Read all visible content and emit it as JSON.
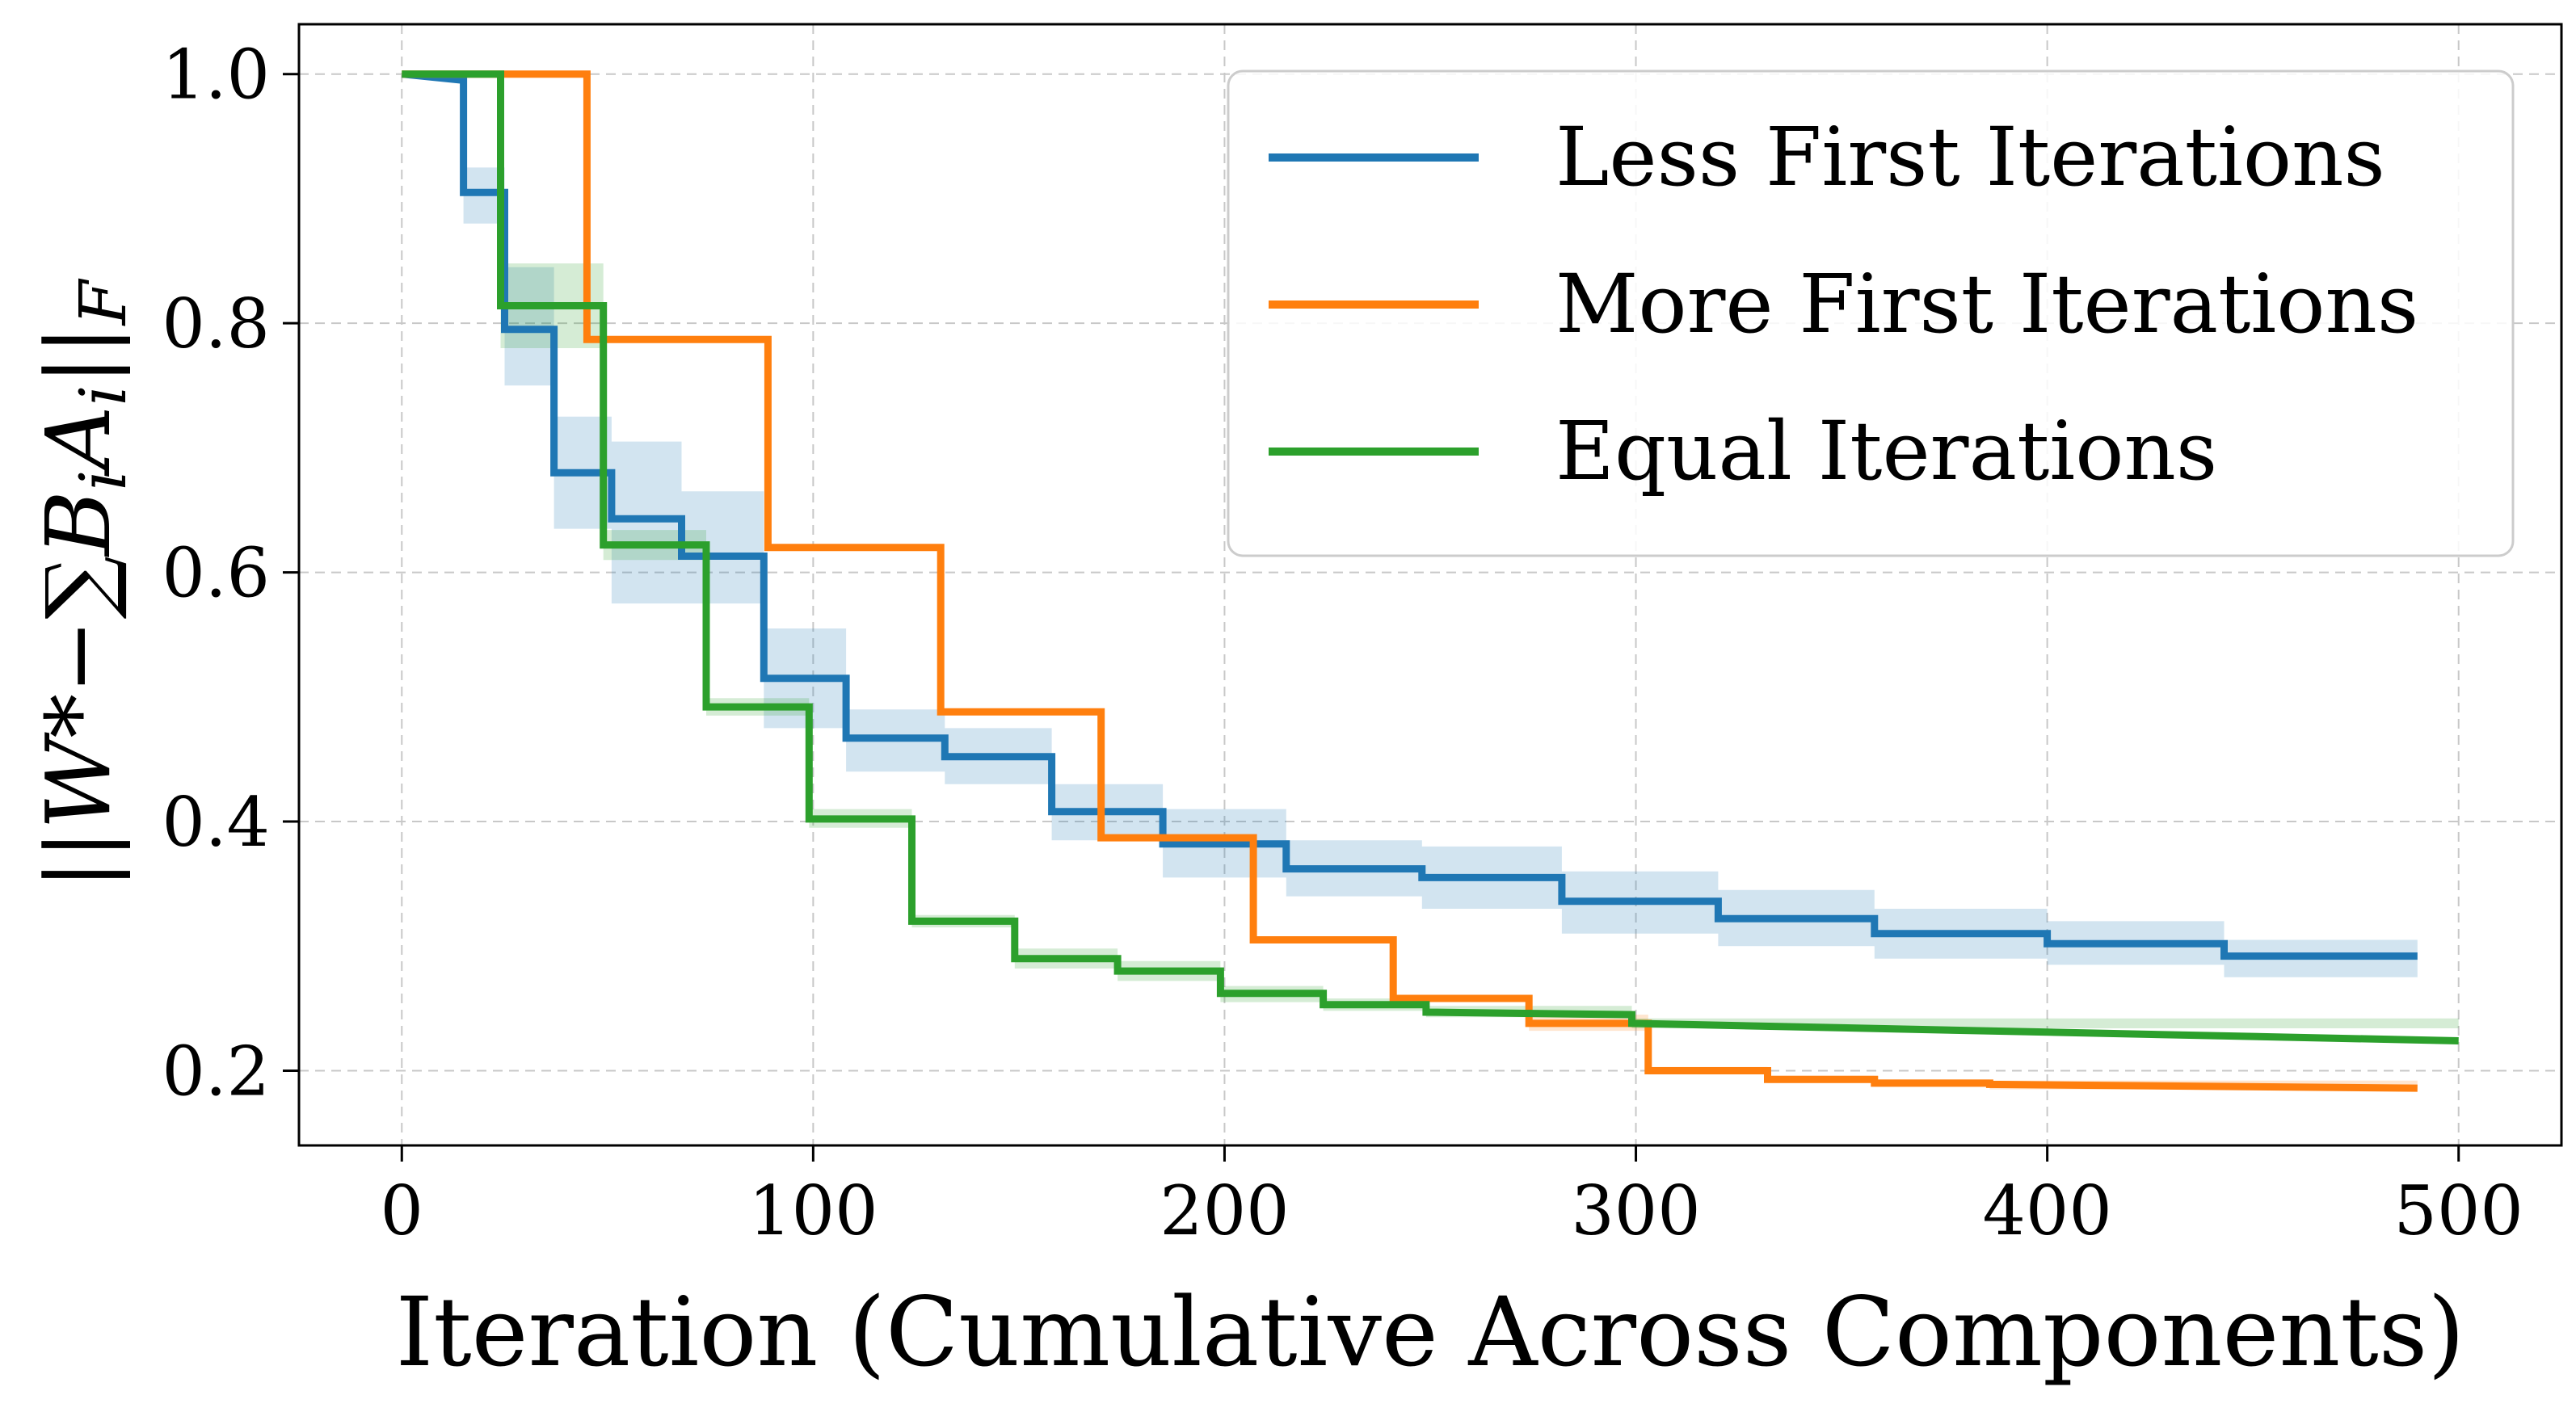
{
  "chart_data": {
    "type": "line",
    "title": "",
    "xlabel": "Iteration (Cumulative Across Components)",
    "ylabel": "||W* − ∑ B_i A_i||_F",
    "xlim": [
      -25,
      525
    ],
    "ylim": [
      0.14,
      1.04
    ],
    "xticks": [
      0,
      100,
      200,
      300,
      400,
      500
    ],
    "yticks": [
      0.2,
      0.4,
      0.6,
      0.8,
      1.0
    ],
    "xtick_labels": [
      "0",
      "100",
      "200",
      "300",
      "400",
      "500"
    ],
    "ytick_labels": [
      "0.2",
      "0.4",
      "0.6",
      "0.8",
      "1.0"
    ],
    "grid": true,
    "legend_position": "top-right",
    "series": [
      {
        "name": "Less First Iterations",
        "color": "#1f77b4",
        "band_opacity": 0.2,
        "steps": [
          [
            0,
            1.0
          ],
          [
            15,
            0.995
          ],
          [
            15,
            0.905
          ],
          [
            25,
            0.905
          ],
          [
            25,
            0.795
          ],
          [
            37,
            0.795
          ],
          [
            37,
            0.68
          ],
          [
            51,
            0.68
          ],
          [
            51,
            0.643
          ],
          [
            68,
            0.643
          ],
          [
            68,
            0.613
          ],
          [
            88,
            0.613
          ],
          [
            88,
            0.515
          ],
          [
            108,
            0.515
          ],
          [
            108,
            0.467
          ],
          [
            132,
            0.467
          ],
          [
            132,
            0.452
          ],
          [
            158,
            0.452
          ],
          [
            158,
            0.408
          ],
          [
            185,
            0.408
          ],
          [
            185,
            0.382
          ],
          [
            215,
            0.382
          ],
          [
            215,
            0.362
          ],
          [
            248,
            0.362
          ],
          [
            248,
            0.355
          ],
          [
            282,
            0.355
          ],
          [
            282,
            0.336
          ],
          [
            320,
            0.336
          ],
          [
            320,
            0.322
          ],
          [
            358,
            0.322
          ],
          [
            358,
            0.31
          ],
          [
            400,
            0.31
          ],
          [
            400,
            0.302
          ],
          [
            443,
            0.302
          ],
          [
            443,
            0.292
          ],
          [
            490,
            0.292
          ]
        ],
        "band": [
          [
            0,
            1.0,
            1.0
          ],
          [
            15,
            0.88,
            0.925
          ],
          [
            25,
            0.75,
            0.845
          ],
          [
            37,
            0.635,
            0.725
          ],
          [
            51,
            0.575,
            0.705
          ],
          [
            68,
            0.575,
            0.665
          ],
          [
            88,
            0.475,
            0.555
          ],
          [
            108,
            0.44,
            0.49
          ],
          [
            132,
            0.43,
            0.475
          ],
          [
            158,
            0.385,
            0.43
          ],
          [
            185,
            0.355,
            0.41
          ],
          [
            215,
            0.34,
            0.385
          ],
          [
            248,
            0.33,
            0.38
          ],
          [
            282,
            0.31,
            0.36
          ],
          [
            320,
            0.3,
            0.345
          ],
          [
            358,
            0.29,
            0.33
          ],
          [
            400,
            0.285,
            0.32
          ],
          [
            443,
            0.275,
            0.305
          ],
          [
            490,
            0.275,
            0.305
          ]
        ]
      },
      {
        "name": "More First Iterations",
        "color": "#ff7f0e",
        "band_opacity": 0.2,
        "steps": [
          [
            0,
            1.0
          ],
          [
            45,
            1.0
          ],
          [
            45,
            0.787
          ],
          [
            89,
            0.787
          ],
          [
            89,
            0.62
          ],
          [
            131,
            0.62
          ],
          [
            131,
            0.488
          ],
          [
            170,
            0.488
          ],
          [
            170,
            0.387
          ],
          [
            207,
            0.387
          ],
          [
            207,
            0.305
          ],
          [
            241,
            0.305
          ],
          [
            241,
            0.258
          ],
          [
            274,
            0.258
          ],
          [
            274,
            0.238
          ],
          [
            303,
            0.238
          ],
          [
            303,
            0.2
          ],
          [
            332,
            0.2
          ],
          [
            332,
            0.193
          ],
          [
            358,
            0.193
          ],
          [
            358,
            0.19
          ],
          [
            386,
            0.19
          ],
          [
            386,
            0.189
          ],
          [
            490,
            0.186
          ]
        ],
        "band": [
          [
            0,
            1.0,
            1.0
          ],
          [
            45,
            0.787,
            0.787
          ],
          [
            89,
            0.62,
            0.62
          ],
          [
            131,
            0.488,
            0.488
          ],
          [
            170,
            0.387,
            0.387
          ],
          [
            207,
            0.305,
            0.305
          ],
          [
            241,
            0.258,
            0.258
          ],
          [
            274,
            0.232,
            0.245
          ],
          [
            303,
            0.197,
            0.203
          ],
          [
            332,
            0.19,
            0.196
          ],
          [
            358,
            0.187,
            0.193
          ],
          [
            386,
            0.185,
            0.192
          ],
          [
            490,
            0.183,
            0.189
          ]
        ]
      },
      {
        "name": "Equal Iterations",
        "color": "#2ca02c",
        "band_opacity": 0.2,
        "steps": [
          [
            0,
            1.0
          ],
          [
            24,
            1.0
          ],
          [
            24,
            0.814
          ],
          [
            49,
            0.814
          ],
          [
            49,
            0.622
          ],
          [
            74,
            0.622
          ],
          [
            74,
            0.492
          ],
          [
            99,
            0.492
          ],
          [
            99,
            0.402
          ],
          [
            124,
            0.402
          ],
          [
            124,
            0.32
          ],
          [
            149,
            0.32
          ],
          [
            149,
            0.29
          ],
          [
            174,
            0.29
          ],
          [
            174,
            0.28
          ],
          [
            199,
            0.28
          ],
          [
            199,
            0.262
          ],
          [
            224,
            0.262
          ],
          [
            224,
            0.253
          ],
          [
            249,
            0.253
          ],
          [
            249,
            0.247
          ],
          [
            299,
            0.245
          ],
          [
            299,
            0.238
          ],
          [
            500,
            0.224
          ]
        ],
        "band": [
          [
            0,
            1.0,
            1.0
          ],
          [
            24,
            0.78,
            0.848
          ],
          [
            49,
            0.61,
            0.634
          ],
          [
            74,
            0.485,
            0.499
          ],
          [
            99,
            0.395,
            0.41
          ],
          [
            124,
            0.315,
            0.325
          ],
          [
            149,
            0.282,
            0.298
          ],
          [
            174,
            0.272,
            0.288
          ],
          [
            199,
            0.255,
            0.268
          ],
          [
            224,
            0.248,
            0.258
          ],
          [
            249,
            0.243,
            0.252
          ],
          [
            299,
            0.234,
            0.242
          ],
          [
            500,
            0.221,
            0.227
          ]
        ]
      }
    ]
  }
}
